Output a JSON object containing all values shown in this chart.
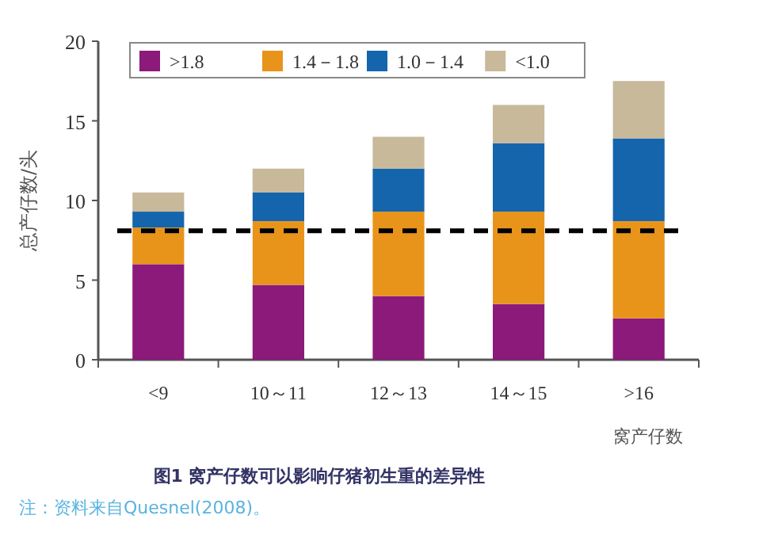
{
  "chart_data": {
    "type": "bar",
    "stacked": true,
    "title": "图1 窝产仔数可以影响仔猪初生重的差异性",
    "xlabel": "窝产仔数",
    "ylabel": "总产仔数/头",
    "categories": [
      "<9",
      "10～11",
      "12～13",
      "14～15",
      ">16"
    ],
    "series": [
      {
        "name": ">1.8",
        "color": "#8b1a7a",
        "values": [
          6.0,
          4.7,
          4.0,
          3.5,
          2.6
        ]
      },
      {
        "name": "1.4－1.8",
        "color": "#e8941a",
        "values": [
          2.3,
          4.0,
          5.3,
          5.8,
          6.1
        ]
      },
      {
        "name": "1.0－1.4",
        "color": "#1565ad",
        "values": [
          1.0,
          1.8,
          2.7,
          4.3,
          5.2
        ]
      },
      {
        "name": "<1.0",
        "color": "#c8b99a",
        "values": [
          1.2,
          1.5,
          2.0,
          2.4,
          3.6
        ]
      }
    ],
    "ylim": [
      0,
      20
    ],
    "yticks": [
      0,
      5,
      10,
      15,
      20
    ],
    "legend": "top left",
    "ref_lines": [
      {
        "axis": "y",
        "value": 8.1,
        "color": "#000000",
        "line_style": "dashed"
      }
    ],
    "annotations": [
      "注：资料来自Quesnel(2008)。"
    ]
  }
}
